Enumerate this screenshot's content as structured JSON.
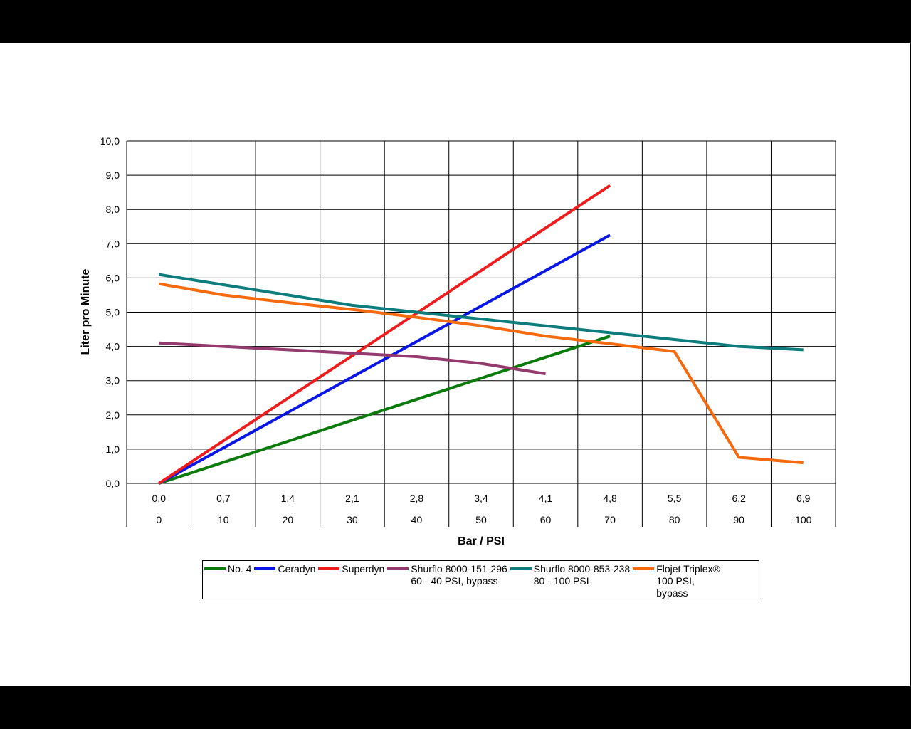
{
  "chart_data": {
    "type": "line",
    "title": "",
    "xlabel": "Bar / PSI",
    "ylabel": "Liter pro Minute",
    "ylim": [
      0,
      10
    ],
    "y_tick_labels": [
      "0,0",
      "1,0",
      "2,0",
      "3,0",
      "4,0",
      "5,0",
      "6,0",
      "7,0",
      "8,0",
      "9,0",
      "10,0"
    ],
    "x_psi": [
      0,
      10,
      20,
      30,
      40,
      50,
      60,
      70,
      80,
      90,
      100
    ],
    "x_tick_labels_bar": [
      "0,0",
      "0,7",
      "1,4",
      "2,1",
      "2,8",
      "3,4",
      "4,1",
      "4,8",
      "5,5",
      "6,2",
      "6,9"
    ],
    "x_tick_labels_psi": [
      "0",
      "10",
      "20",
      "30",
      "40",
      "50",
      "60",
      "70",
      "80",
      "90",
      "100"
    ],
    "grid": true,
    "legend_position": "bottom",
    "series": [
      {
        "name": "No. 4",
        "color": "#0a7a0a",
        "x": [
          0,
          70
        ],
        "values": [
          0.0,
          4.3
        ]
      },
      {
        "name": "Ceradyn",
        "color": "#0a16e6",
        "x": [
          0,
          70
        ],
        "values": [
          0.0,
          7.25
        ]
      },
      {
        "name": "Superdyn",
        "color": "#ee1c1c",
        "x": [
          0,
          70
        ],
        "values": [
          0.0,
          8.7
        ]
      },
      {
        "name": "Shurflo 8000-151-296\n60 - 40 PSI, bypass",
        "color": "#953a6e",
        "x": [
          0,
          10,
          20,
          30,
          40,
          50,
          60
        ],
        "values": [
          4.1,
          4.0,
          3.9,
          3.8,
          3.7,
          3.5,
          3.2
        ]
      },
      {
        "name": "Shurflo 8000-853-238\n80 - 100 PSI",
        "color": "#0d7c7c",
        "x": [
          0,
          10,
          20,
          30,
          40,
          50,
          60,
          70,
          80,
          90,
          100
        ],
        "values": [
          6.1,
          5.8,
          5.5,
          5.2,
          5.0,
          4.8,
          4.6,
          4.4,
          4.2,
          4.0,
          3.9
        ]
      },
      {
        "name": "Flojet Triplex®\n100 PSI,\nbypass",
        "color": "#f56a0e",
        "x": [
          0,
          10,
          20,
          30,
          40,
          50,
          60,
          70,
          80,
          90,
          100
        ],
        "values": [
          5.83,
          5.5,
          5.28,
          5.08,
          4.85,
          4.6,
          4.3,
          4.08,
          3.85,
          0.76,
          0.6
        ]
      }
    ]
  }
}
